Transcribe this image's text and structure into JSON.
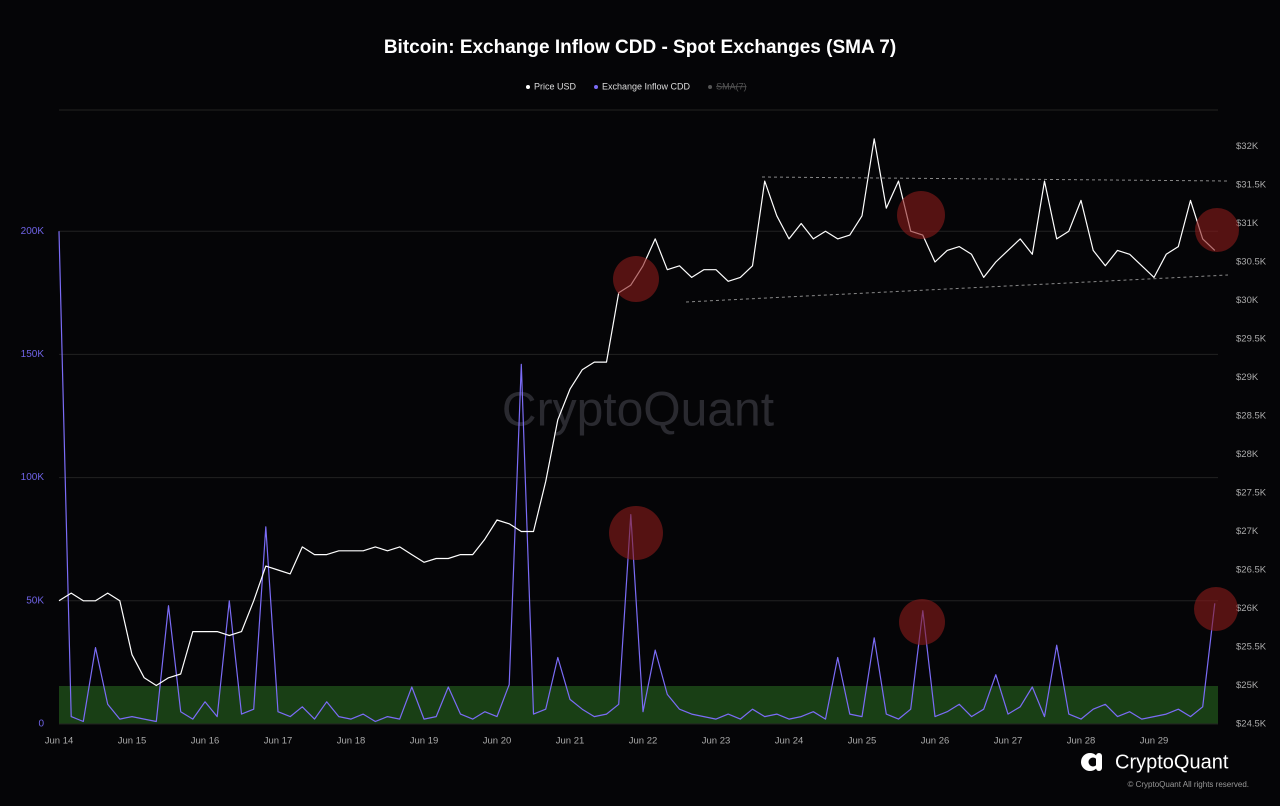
{
  "chart_data": {
    "type": "line",
    "title": "Bitcoin: Exchange Inflow CDD - Spot Exchanges (SMA 7)",
    "watermark": "CryptoQuant",
    "brand": "CryptoQuant",
    "copyright": "© CryptoQuant All rights reserved.",
    "hidden_series": [
      "SMA(7)"
    ],
    "grid": true,
    "categories": [
      "Jun 14",
      null,
      null,
      null,
      null,
      null,
      "Jun 15",
      null,
      null,
      null,
      null,
      null,
      "Jun 16",
      null,
      null,
      null,
      null,
      null,
      "Jun 17",
      null,
      null,
      null,
      null,
      null,
      "Jun 18",
      null,
      null,
      null,
      null,
      null,
      "Jun 19",
      null,
      null,
      null,
      null,
      null,
      "Jun 20",
      null,
      null,
      null,
      null,
      null,
      "Jun 21",
      null,
      null,
      null,
      null,
      null,
      "Jun 22",
      null,
      null,
      null,
      null,
      null,
      "Jun 23",
      null,
      null,
      null,
      null,
      null,
      "Jun 24",
      null,
      null,
      null,
      null,
      null,
      "Jun 25",
      null,
      null,
      null,
      null,
      null,
      "Jun 26",
      null,
      null,
      null,
      null,
      null,
      "Jun 27",
      null,
      null,
      null,
      null,
      null,
      "Jun 28",
      null,
      null,
      null,
      null,
      null,
      "Jun 29",
      null,
      null,
      null,
      null,
      null
    ],
    "ylim": [
      0,
      250000
    ],
    "yticks": [
      {
        "value": 0,
        "label": "0"
      },
      {
        "value": 50000,
        "label": "50K"
      },
      {
        "value": 100000,
        "label": "100K"
      },
      {
        "value": 150000,
        "label": "150K"
      },
      {
        "value": 200000,
        "label": "200K"
      }
    ],
    "y2lim": [
      24500,
      32500
    ],
    "y2ticks": [
      {
        "value": 24500,
        "label": "$24.5K"
      },
      {
        "value": 25000,
        "label": "$25K"
      },
      {
        "value": 25500,
        "label": "$25.5K"
      },
      {
        "value": 26000,
        "label": "$26K"
      },
      {
        "value": 26500,
        "label": "$26.5K"
      },
      {
        "value": 27000,
        "label": "$27K"
      },
      {
        "value": 27500,
        "label": "$27.5K"
      },
      {
        "value": 28000,
        "label": "$28K"
      },
      {
        "value": 28500,
        "label": "$28.5K"
      },
      {
        "value": 29000,
        "label": "$29K"
      },
      {
        "value": 29500,
        "label": "$29.5K"
      },
      {
        "value": 30000,
        "label": "$30K"
      },
      {
        "value": 30500,
        "label": "$30.5K"
      },
      {
        "value": 31000,
        "label": "$31K"
      },
      {
        "value": 31500,
        "label": "$31.5K"
      },
      {
        "value": 32000,
        "label": "$32K"
      }
    ],
    "series": [
      {
        "name": "Price USD",
        "color": "#ffffff",
        "axis": "y2",
        "values": [
          26100,
          26200,
          26100,
          26100,
          26200,
          26100,
          25400,
          25100,
          25000,
          25100,
          25150,
          25700,
          25700,
          25700,
          25650,
          25700,
          26100,
          26550,
          26500,
          26450,
          26800,
          26700,
          26700,
          26750,
          26750,
          26750,
          26800,
          26750,
          26800,
          26700,
          26600,
          26650,
          26650,
          26700,
          26700,
          26900,
          27150,
          27100,
          27000,
          27000,
          27650,
          28450,
          28850,
          29100,
          29200,
          29200,
          30100,
          30200,
          30450,
          30800,
          30400,
          30450,
          30300,
          30400,
          30400,
          30250,
          30300,
          30450,
          31550,
          31100,
          30800,
          31000,
          30800,
          30900,
          30800,
          30850,
          31100,
          32100,
          31200,
          31550,
          30900,
          30850,
          30500,
          30650,
          30700,
          30600,
          30300,
          30500,
          30650,
          30800,
          30600,
          31550,
          30800,
          30900,
          31300,
          30650,
          30450,
          30650,
          30600,
          30450,
          30300,
          30600,
          30700,
          31300,
          30800,
          30650
        ]
      },
      {
        "name": "Exchange Inflow CDD",
        "color": "#7b6cf6",
        "values": [
          200000,
          3000,
          1000,
          31000,
          8000,
          2000,
          3000,
          2000,
          1000,
          48000,
          5000,
          2000,
          9000,
          3000,
          50000,
          4000,
          6000,
          80000,
          5000,
          3000,
          7000,
          2000,
          9000,
          3000,
          2000,
          4000,
          1000,
          3000,
          2000,
          15000,
          2000,
          3000,
          15000,
          4000,
          2000,
          5000,
          3000,
          16000,
          146000,
          4000,
          6000,
          27000,
          10000,
          6000,
          3000,
          4000,
          8000,
          85000,
          5000,
          30000,
          12000,
          6000,
          4000,
          3000,
          2000,
          4000,
          2000,
          6000,
          3000,
          4000,
          2000,
          3000,
          5000,
          2000,
          27000,
          4000,
          3000,
          35000,
          4000,
          2000,
          6000,
          46000,
          3000,
          5000,
          8000,
          3000,
          6000,
          20000,
          4000,
          7000,
          15000,
          3000,
          32000,
          4000,
          2000,
          6000,
          8000,
          3000,
          5000,
          2000,
          3000,
          4000,
          6000,
          3000,
          7000,
          49000
        ]
      }
    ]
  }
}
